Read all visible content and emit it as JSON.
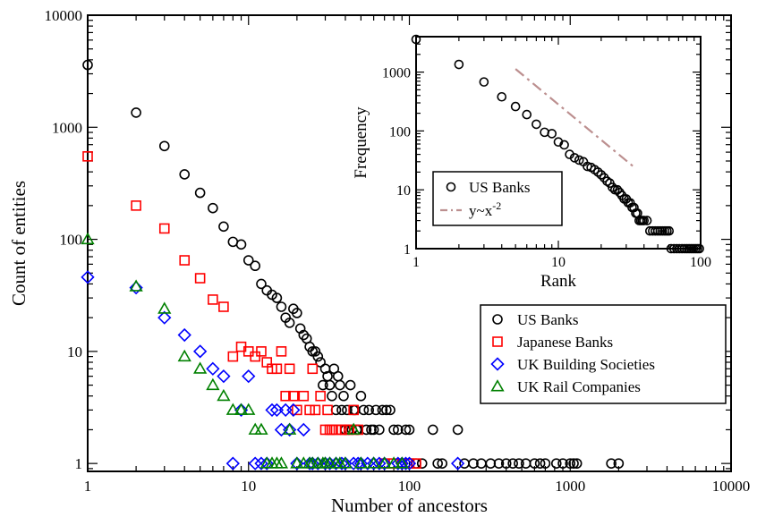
{
  "chart_data": [
    {
      "type": "scatter",
      "xlabel": "Number of ancestors",
      "ylabel": "Count of entities",
      "xscale": "log",
      "yscale": "log",
      "xlim": [
        1,
        10000
      ],
      "ylim": [
        0.85,
        10000
      ],
      "xticks": [
        1,
        10,
        100,
        1000,
        10000
      ],
      "xtick_labels": [
        "1",
        "10",
        "100",
        "1000",
        "10000"
      ],
      "yticks": [
        1,
        10,
        100,
        1000,
        10000
      ],
      "ytick_labels": [
        "1",
        "10",
        "100",
        "1000",
        "10000"
      ],
      "legend_position": "lower-right",
      "series": [
        {
          "name": "US Banks",
          "marker": "circle",
          "color": "#000000",
          "points": [
            [
              1,
              3600
            ],
            [
              2,
              1350
            ],
            [
              3,
              680
            ],
            [
              4,
              380
            ],
            [
              5,
              260
            ],
            [
              6,
              190
            ],
            [
              7,
              130
            ],
            [
              8,
              95
            ],
            [
              9,
              90
            ],
            [
              10,
              65
            ],
            [
              11,
              58
            ],
            [
              12,
              40
            ],
            [
              13,
              35
            ],
            [
              14,
              32
            ],
            [
              15,
              30
            ],
            [
              16,
              25
            ],
            [
              17,
              20
            ],
            [
              18,
              18
            ],
            [
              19,
              24
            ],
            [
              20,
              22
            ],
            [
              21,
              16
            ],
            [
              22,
              14
            ],
            [
              23,
              13
            ],
            [
              24,
              11
            ],
            [
              25,
              10
            ],
            [
              26,
              10
            ],
            [
              27,
              9
            ],
            [
              28,
              8
            ],
            [
              29,
              5
            ],
            [
              30,
              7
            ],
            [
              31,
              6
            ],
            [
              32,
              5
            ],
            [
              33,
              4
            ],
            [
              34,
              7
            ],
            [
              35,
              3
            ],
            [
              36,
              6
            ],
            [
              37,
              5
            ],
            [
              38,
              3
            ],
            [
              39,
              4
            ],
            [
              40,
              2
            ],
            [
              41,
              3
            ],
            [
              42,
              2
            ],
            [
              43,
              5
            ],
            [
              44,
              2
            ],
            [
              45,
              3
            ],
            [
              46,
              3
            ],
            [
              47,
              2
            ],
            [
              48,
              2
            ],
            [
              50,
              4
            ],
            [
              52,
              3
            ],
            [
              54,
              2
            ],
            [
              56,
              3
            ],
            [
              58,
              2
            ],
            [
              60,
              2
            ],
            [
              62,
              3
            ],
            [
              65,
              2
            ],
            [
              68,
              3
            ],
            [
              72,
              3
            ],
            [
              76,
              3
            ],
            [
              80,
              2
            ],
            [
              85,
              2
            ],
            [
              90,
              1
            ],
            [
              95,
              2
            ],
            [
              100,
              2
            ],
            [
              110,
              1
            ],
            [
              120,
              1
            ],
            [
              140,
              2
            ],
            [
              150,
              1
            ],
            [
              160,
              1
            ],
            [
              200,
              2
            ],
            [
              220,
              1
            ],
            [
              250,
              1
            ],
            [
              280,
              1
            ],
            [
              320,
              1
            ],
            [
              360,
              1
            ],
            [
              400,
              1
            ],
            [
              440,
              1
            ],
            [
              480,
              1
            ],
            [
              530,
              1
            ],
            [
              600,
              1
            ],
            [
              650,
              1
            ],
            [
              700,
              1
            ],
            [
              820,
              1
            ],
            [
              900,
              1
            ],
            [
              1000,
              1
            ],
            [
              1050,
              1
            ],
            [
              1100,
              1
            ],
            [
              1800,
              1
            ],
            [
              2000,
              1
            ]
          ]
        },
        {
          "name": "Japanese Banks",
          "marker": "square",
          "color": "#ff0000",
          "points": [
            [
              1,
              550
            ],
            [
              2,
              200
            ],
            [
              3,
              125
            ],
            [
              4,
              65
            ],
            [
              5,
              45
            ],
            [
              6,
              29
            ],
            [
              7,
              25
            ],
            [
              8,
              9
            ],
            [
              9,
              11
            ],
            [
              10,
              10
            ],
            [
              11,
              9
            ],
            [
              12,
              10
            ],
            [
              13,
              8
            ],
            [
              14,
              7
            ],
            [
              15,
              7
            ],
            [
              16,
              10
            ],
            [
              17,
              4
            ],
            [
              18,
              7
            ],
            [
              19,
              4
            ],
            [
              20,
              3
            ],
            [
              22,
              4
            ],
            [
              24,
              3
            ],
            [
              25,
              7
            ],
            [
              26,
              3
            ],
            [
              28,
              4
            ],
            [
              30,
              2
            ],
            [
              31,
              3
            ],
            [
              32,
              2
            ],
            [
              33,
              2
            ],
            [
              35,
              2
            ],
            [
              38,
              2
            ],
            [
              40,
              2
            ],
            [
              42,
              2
            ],
            [
              45,
              3
            ],
            [
              48,
              2
            ],
            [
              70,
              1
            ],
            [
              80,
              1
            ],
            [
              90,
              1
            ],
            [
              100,
              1
            ],
            [
              110,
              1
            ]
          ]
        },
        {
          "name": "UK Building Societies",
          "marker": "diamond",
          "color": "#0000ff",
          "points": [
            [
              1,
              46
            ],
            [
              2,
              37
            ],
            [
              3,
              20
            ],
            [
              4,
              14
            ],
            [
              5,
              10
            ],
            [
              6,
              7
            ],
            [
              7,
              6
            ],
            [
              8,
              1
            ],
            [
              9,
              3
            ],
            [
              10,
              6
            ],
            [
              11,
              1
            ],
            [
              12,
              1
            ],
            [
              13,
              1
            ],
            [
              14,
              3
            ],
            [
              15,
              3
            ],
            [
              16,
              2
            ],
            [
              17,
              3
            ],
            [
              18,
              2
            ],
            [
              19,
              3
            ],
            [
              20,
              1
            ],
            [
              22,
              2
            ],
            [
              24,
              1
            ],
            [
              25,
              1
            ],
            [
              27,
              1
            ],
            [
              30,
              1
            ],
            [
              32,
              1
            ],
            [
              35,
              1
            ],
            [
              38,
              1
            ],
            [
              40,
              1
            ],
            [
              45,
              1
            ],
            [
              48,
              1
            ],
            [
              50,
              1
            ],
            [
              55,
              1
            ],
            [
              60,
              1
            ],
            [
              65,
              1
            ],
            [
              70,
              1
            ],
            [
              85,
              1
            ],
            [
              90,
              1
            ],
            [
              95,
              1
            ],
            [
              100,
              1
            ],
            [
              200,
              1
            ]
          ]
        },
        {
          "name": "UK Rail Companies",
          "marker": "triangle",
          "color": "#008000",
          "points": [
            [
              1,
              100
            ],
            [
              2,
              38
            ],
            [
              3,
              24
            ],
            [
              4,
              9
            ],
            [
              5,
              7
            ],
            [
              6,
              5
            ],
            [
              7,
              4
            ],
            [
              8,
              3
            ],
            [
              9,
              3
            ],
            [
              10,
              3
            ],
            [
              11,
              2
            ],
            [
              12,
              2
            ],
            [
              13,
              1
            ],
            [
              14,
              1
            ],
            [
              15,
              1
            ],
            [
              16,
              1
            ],
            [
              18,
              2
            ],
            [
              20,
              1
            ],
            [
              22,
              1
            ],
            [
              24,
              1
            ],
            [
              25,
              1
            ],
            [
              27,
              1
            ],
            [
              29,
              1
            ],
            [
              30,
              1
            ],
            [
              32,
              1
            ],
            [
              35,
              1
            ],
            [
              37,
              1
            ],
            [
              40,
              1
            ],
            [
              45,
              2
            ],
            [
              50,
              1
            ],
            [
              60,
              1
            ],
            [
              70,
              1
            ],
            [
              80,
              1
            ],
            [
              90,
              1
            ]
          ]
        }
      ]
    },
    {
      "type": "scatter",
      "xlabel": "Rank",
      "ylabel": "Frequency",
      "xscale": "log",
      "yscale": "log",
      "xlim": [
        1,
        100
      ],
      "ylim": [
        1,
        4000
      ],
      "xticks": [
        1,
        10,
        100
      ],
      "xtick_labels": [
        "1",
        "10",
        "100"
      ],
      "yticks": [
        1,
        10,
        100,
        1000
      ],
      "ytick_labels": [
        "1",
        "10",
        "100",
        "1000"
      ],
      "legend_position": "left",
      "series": [
        {
          "name": "US Banks",
          "marker": "circle",
          "color": "#000000",
          "points": [
            [
              1,
              3600
            ],
            [
              2,
              1350
            ],
            [
              3,
              680
            ],
            [
              4,
              380
            ],
            [
              5,
              260
            ],
            [
              6,
              190
            ],
            [
              7,
              130
            ],
            [
              8,
              95
            ],
            [
              9,
              90
            ],
            [
              10,
              65
            ],
            [
              11,
              58
            ],
            [
              12,
              40
            ],
            [
              13,
              35
            ],
            [
              14,
              32
            ],
            [
              15,
              30
            ],
            [
              16,
              25
            ],
            [
              17,
              24
            ],
            [
              18,
              22
            ],
            [
              19,
              20
            ],
            [
              20,
              18
            ],
            [
              21,
              16
            ],
            [
              22,
              14
            ],
            [
              23,
              13
            ],
            [
              24,
              11
            ],
            [
              25,
              10
            ],
            [
              26,
              10
            ],
            [
              27,
              9
            ],
            [
              28,
              8
            ],
            [
              29,
              7
            ],
            [
              30,
              7
            ],
            [
              31,
              6
            ],
            [
              32,
              6
            ],
            [
              33,
              5
            ],
            [
              34,
              5
            ],
            [
              35,
              4
            ],
            [
              36,
              4
            ],
            [
              37,
              3
            ],
            [
              38,
              3
            ],
            [
              39,
              3
            ],
            [
              40,
              3
            ],
            [
              42,
              3
            ],
            [
              44,
              2
            ],
            [
              46,
              2
            ],
            [
              48,
              2
            ],
            [
              50,
              2
            ],
            [
              52,
              2
            ],
            [
              54,
              2
            ],
            [
              56,
              2
            ],
            [
              58,
              2
            ],
            [
              60,
              2
            ],
            [
              62,
              1
            ],
            [
              65,
              1
            ],
            [
              68,
              1
            ],
            [
              71,
              1
            ],
            [
              74,
              1
            ],
            [
              77,
              1
            ],
            [
              80,
              1
            ],
            [
              83,
              1
            ],
            [
              86,
              1
            ],
            [
              89,
              1
            ],
            [
              92,
              1
            ],
            [
              95,
              1
            ],
            [
              98,
              1
            ]
          ]
        },
        {
          "name": "y~x",
          "name_superscript": "-2",
          "style": "dash-dot",
          "color": "#bc8f8f",
          "x_range": [
            5,
            35
          ],
          "y_range": [
            1130,
            23
          ]
        }
      ]
    }
  ]
}
